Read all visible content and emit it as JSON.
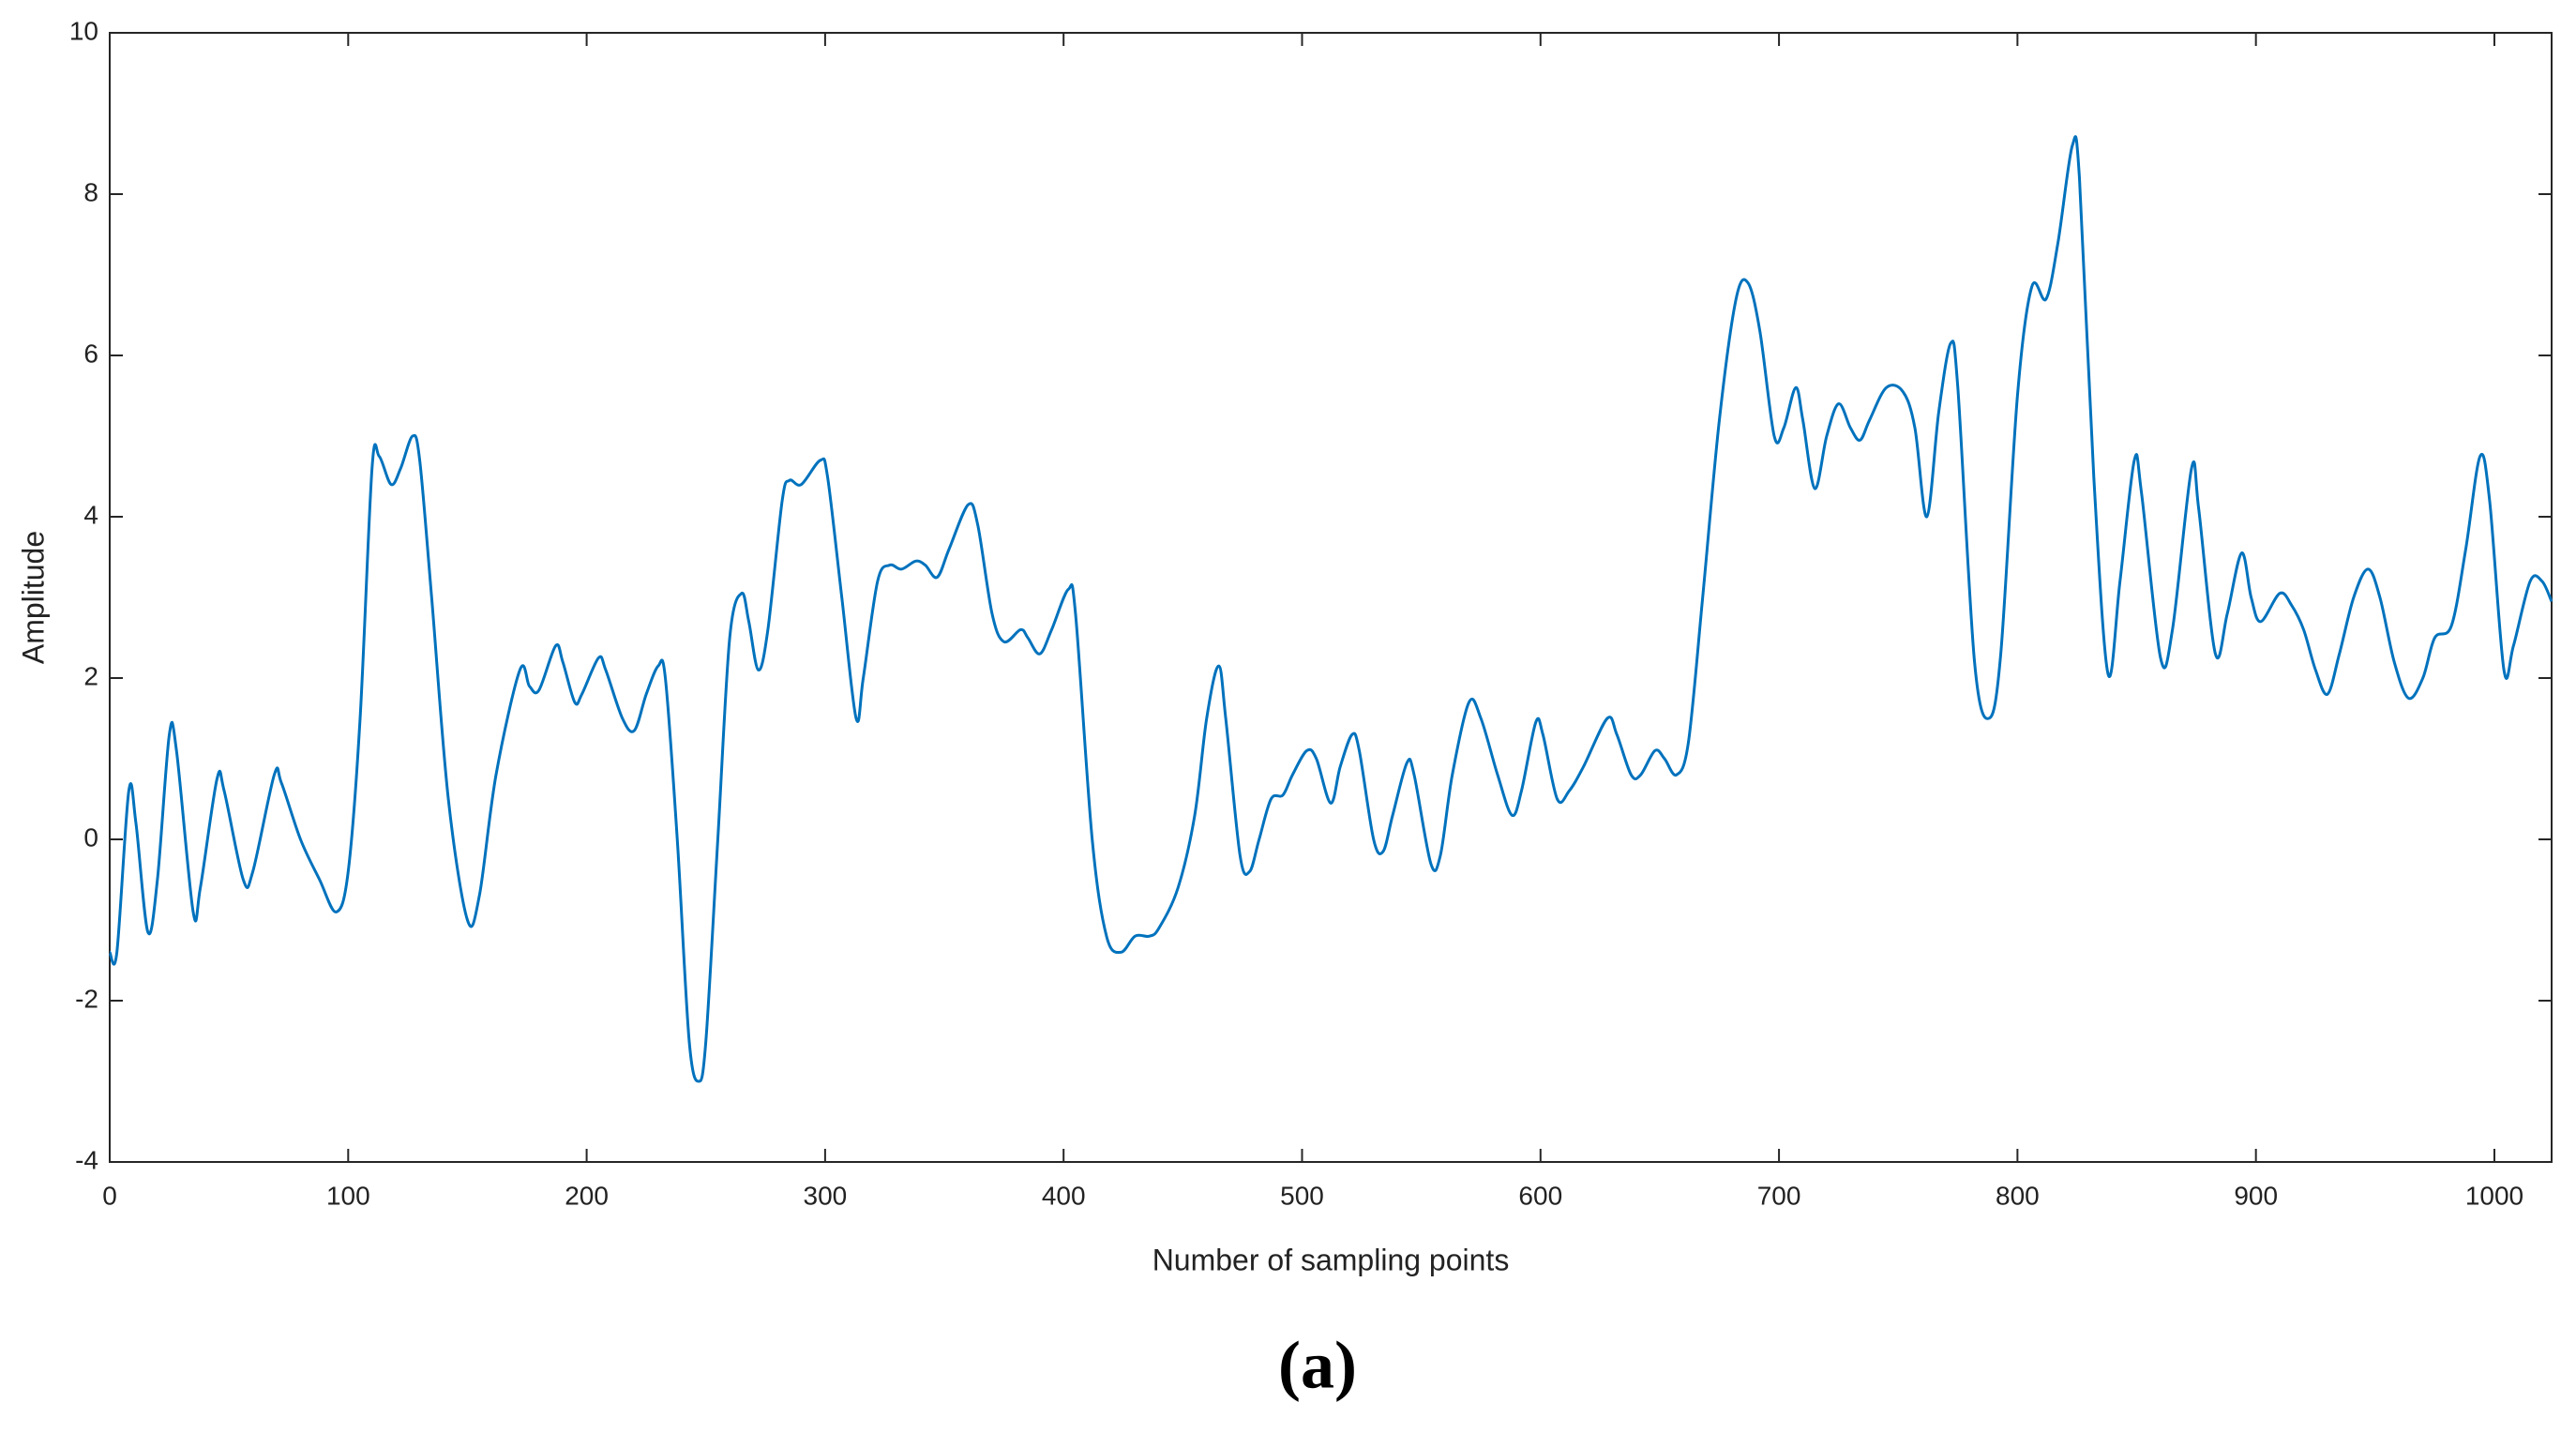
{
  "chart_data": {
    "type": "line",
    "xlabel": "Number of sampling points",
    "ylabel": "Amplitude",
    "caption": "(a)",
    "xlim": [
      0,
      1024
    ],
    "ylim": [
      -4,
      10
    ],
    "xticks": [
      0,
      100,
      200,
      300,
      400,
      500,
      600,
      700,
      800,
      900,
      1000
    ],
    "yticks": [
      -4,
      -2,
      0,
      2,
      4,
      6,
      8,
      10
    ],
    "series": [
      {
        "color": "#0072bd",
        "x": [
          0,
          3,
          8,
          11,
          16,
          20,
          25,
          28,
          35,
          38,
          45,
          48,
          56,
          60,
          69,
          72,
          80,
          88,
          95,
          100,
          105,
          110,
          113,
          118,
          122,
          127,
          130,
          135,
          142,
          150,
          155,
          162,
          172,
          176,
          180,
          187,
          190,
          195,
          198,
          205,
          208,
          215,
          220,
          225,
          230,
          233,
          238,
          243,
          247,
          250,
          255,
          260,
          265,
          268,
          272,
          276,
          282,
          285,
          290,
          298,
          301,
          307,
          313,
          316,
          322,
          327,
          332,
          338,
          342,
          347,
          352,
          360,
          364,
          370,
          375,
          382,
          385,
          390,
          395,
          402,
          405,
          412,
          418,
          424,
          430,
          436,
          440,
          448,
          455,
          460,
          465,
          468,
          474,
          478,
          482,
          487,
          492,
          496,
          502,
          506,
          512,
          516,
          521,
          524,
          530,
          534,
          538,
          544,
          547,
          554,
          558,
          563,
          570,
          575,
          582,
          588,
          592,
          598,
          601,
          607,
          612,
          618,
          628,
          632,
          638,
          642,
          648,
          652,
          657,
          662,
          668,
          675,
          682,
          687,
          692,
          698,
          702,
          707,
          710,
          715,
          720,
          725,
          730,
          734,
          738,
          745,
          752,
          757,
          762,
          767,
          772,
          775,
          782,
          788,
          793,
          800,
          806,
          812,
          817,
          823,
          826,
          832,
          838,
          843,
          849,
          852,
          860,
          865,
          873,
          876,
          883,
          888,
          894,
          898,
          902,
          910,
          915,
          920,
          925,
          930,
          935,
          941,
          947,
          952,
          958,
          964,
          970,
          975,
          982,
          988,
          994,
          998,
          1004,
          1008,
          1015,
          1020,
          1024
        ],
        "values": [
          -1.4,
          -1.4,
          0.6,
          0.2,
          -1.15,
          -0.5,
          1.3,
          1.1,
          -0.9,
          -0.6,
          0.75,
          0.6,
          -0.5,
          -0.4,
          0.8,
          0.7,
          0,
          -0.5,
          -0.9,
          -0.4,
          1.5,
          4.6,
          4.75,
          4.4,
          4.6,
          5.0,
          4.7,
          3.0,
          0.5,
          -1.0,
          -0.7,
          0.8,
          2.1,
          1.9,
          1.85,
          2.4,
          2.2,
          1.7,
          1.8,
          2.25,
          2.1,
          1.5,
          1.35,
          1.8,
          2.15,
          2.0,
          0,
          -2.5,
          -3.0,
          -2.5,
          0,
          2.5,
          3.05,
          2.7,
          2.1,
          2.6,
          4.2,
          4.45,
          4.4,
          4.7,
          4.5,
          3,
          1.5,
          2,
          3.2,
          3.4,
          3.35,
          3.45,
          3.4,
          3.25,
          3.6,
          4.15,
          3.9,
          2.8,
          2.45,
          2.6,
          2.5,
          2.3,
          2.6,
          3.1,
          2.8,
          0,
          -1.2,
          -1.4,
          -1.2,
          -1.2,
          -1.1,
          -0.6,
          0.3,
          1.5,
          2.15,
          1.5,
          -0.2,
          -0.4,
          0,
          0.5,
          0.55,
          0.8,
          1.1,
          1.0,
          0.45,
          0.9,
          1.3,
          1.1,
          0,
          -0.15,
          0.3,
          0.95,
          0.8,
          -0.3,
          -0.2,
          0.8,
          1.7,
          1.5,
          0.8,
          0.3,
          0.6,
          1.45,
          1.3,
          0.5,
          0.6,
          0.9,
          1.5,
          1.3,
          0.8,
          0.8,
          1.1,
          1.0,
          0.8,
          1.2,
          3,
          5.2,
          6.7,
          6.9,
          6.3,
          5.0,
          5.1,
          5.6,
          5.2,
          4.35,
          5.0,
          5.4,
          5.1,
          4.95,
          5.2,
          5.6,
          5.55,
          5.1,
          4.0,
          5.3,
          6.15,
          5.6,
          2.2,
          1.5,
          2.3,
          5.5,
          6.85,
          6.7,
          7.4,
          8.6,
          8.2,
          4.5,
          2.05,
          3.2,
          4.7,
          4.3,
          2.25,
          2.6,
          4.6,
          4.1,
          2.3,
          2.8,
          3.55,
          3.0,
          2.7,
          3.05,
          2.9,
          2.6,
          2.1,
          1.8,
          2.3,
          3.0,
          3.35,
          3.0,
          2.2,
          1.75,
          2.0,
          2.5,
          2.65,
          3.6,
          4.75,
          4.2,
          2.1,
          2.4,
          3.2,
          3.2,
          2.95
        ]
      }
    ]
  }
}
